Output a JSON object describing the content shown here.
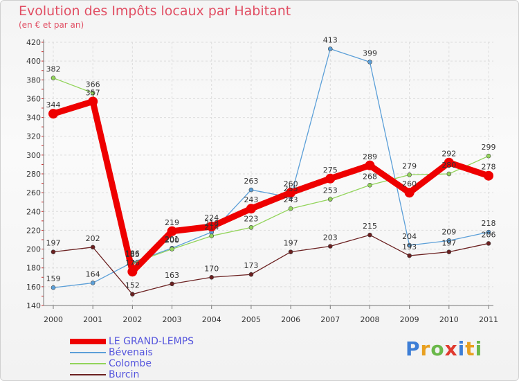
{
  "title": "Evolution des Impôts locaux par Habitant",
  "subtitle": "(en € et par an)",
  "brand": {
    "letters": [
      "P",
      "r",
      "o",
      "x",
      "i",
      "t",
      "i"
    ],
    "colors": [
      "#3d7ed6",
      "#e8a020",
      "#6ab84a",
      "#e03a2f",
      "#3d7ed6",
      "#e8a020",
      "#6ab84a"
    ]
  },
  "chart_data": {
    "type": "line",
    "x": [
      "2000",
      "2001",
      "2002",
      "2003",
      "2004",
      "2005",
      "2006",
      "2007",
      "2008",
      "2009",
      "2010",
      "2011"
    ],
    "ylim": [
      140,
      420
    ],
    "yticks": [
      140,
      160,
      180,
      200,
      220,
      240,
      260,
      280,
      300,
      320,
      340,
      360,
      380,
      400,
      420
    ],
    "grid": true,
    "legend_position": "bottom-left",
    "series": [
      {
        "name": "LE GRAND-LEMPS",
        "color": "#ee0000",
        "emphasis": true,
        "values": [
          344,
          357,
          176,
          219,
          224,
          243,
          260,
          275,
          289,
          260,
          292,
          278
        ],
        "labels": [
          "344",
          "357",
          "176",
          "219",
          "224",
          "243",
          "260",
          "275",
          "289",
          "260",
          "292",
          "278"
        ]
      },
      {
        "name": "Bévenais",
        "color": "#5b9fd8",
        "values": [
          159,
          164,
          186,
          201,
          218,
          263,
          255,
          413,
          399,
          204,
          209,
          218
        ],
        "labels": [
          "159",
          "164",
          "186",
          "201",
          "218",
          "263",
          "255",
          "413",
          "399",
          "204",
          "209",
          "218"
        ]
      },
      {
        "name": "Colombe",
        "color": "#92d45a",
        "values": [
          382,
          366,
          185,
          200,
          214,
          223,
          243,
          253,
          268,
          279,
          280,
          299
        ],
        "labels": [
          "382",
          "366",
          "185",
          "200",
          "214",
          "223",
          "243",
          "253",
          "268",
          "279",
          "280",
          "299"
        ]
      },
      {
        "name": "Burcin",
        "color": "#6b2020",
        "values": [
          197,
          202,
          152,
          163,
          170,
          173,
          197,
          203,
          215,
          193,
          197,
          206
        ],
        "labels": [
          "197",
          "202",
          "152",
          "163",
          "170",
          "173",
          "197",
          "203",
          "215",
          "193",
          "197",
          "206"
        ]
      }
    ]
  }
}
